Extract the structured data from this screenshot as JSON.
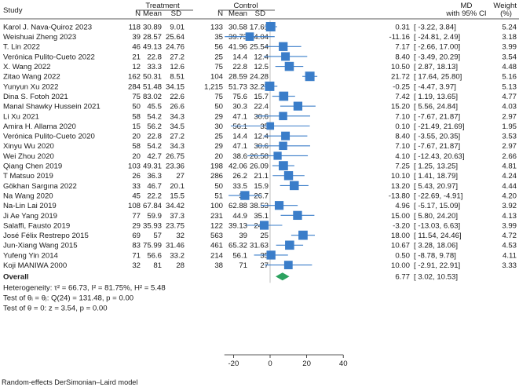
{
  "chart_data": {
    "type": "forest",
    "headers": {
      "study": "Study",
      "treatment_group": "Treatment",
      "control_group": "Control",
      "n": "N",
      "mean": "Mean",
      "sd": "SD",
      "effect_line1": "MD",
      "effect_line2": "with 95% CI",
      "weight_line1": "Weight",
      "weight_line2": "(%)"
    },
    "studies": [
      {
        "study": "Karol J. Nava-Quiroz 2023",
        "t_n": "118",
        "t_mean": "30.89",
        "t_sd": "9.01",
        "c_n": "133",
        "c_mean": "30.58",
        "c_sd": "17.61",
        "md": 0.31,
        "lo": -3.22,
        "hi": 3.84,
        "md_text": "0.31",
        "ci_text": "[ -3.22,  3.84]",
        "weight": "5.24"
      },
      {
        "study": "Weishuai Zheng 2023",
        "t_n": "39",
        "t_mean": "28.57",
        "t_sd": "25.64",
        "c_n": "35",
        "c_mean": "39.73",
        "c_sd": "34.04",
        "md": -11.16,
        "lo": -24.81,
        "hi": 2.49,
        "md_text": "-11.16",
        "ci_text": "[ -24.81,  2.49]",
        "weight": "3.18"
      },
      {
        "study": "T. Lin 2022",
        "t_n": "46",
        "t_mean": "49.13",
        "t_sd": "24.76",
        "c_n": "56",
        "c_mean": "41.96",
        "c_sd": "25.54",
        "md": 7.17,
        "lo": -2.66,
        "hi": 17.0,
        "md_text": "7.17",
        "ci_text": "[ -2.66, 17.00]",
        "weight": "3.99"
      },
      {
        "study": "Verónica Pulito-Cueto 2022",
        "t_n": "21",
        "t_mean": "22.8",
        "t_sd": "27.2",
        "c_n": "25",
        "c_mean": "14.4",
        "c_sd": "12.4",
        "md": 8.4,
        "lo": -3.49,
        "hi": 20.29,
        "md_text": "8.40",
        "ci_text": "[ -3.49, 20.29]",
        "weight": "3.54"
      },
      {
        "study": "X. Wang 2022",
        "t_n": "12",
        "t_mean": "33.3",
        "t_sd": "12.6",
        "c_n": "75",
        "c_mean": "22.8",
        "c_sd": "12.5",
        "md": 10.5,
        "lo": 2.87,
        "hi": 18.13,
        "md_text": "10.50",
        "ci_text": "[  2.87, 18.13]",
        "weight": "4.48"
      },
      {
        "study": "Zitao Wang 2022",
        "t_n": "162",
        "t_mean": "50.31",
        "t_sd": "8.51",
        "c_n": "104",
        "c_mean": "28.59",
        "c_sd": "24.28",
        "md": 21.72,
        "lo": 17.64,
        "hi": 25.8,
        "md_text": "21.72",
        "ci_text": "[ 17.64, 25.80]",
        "weight": "5.16"
      },
      {
        "study": "Yunyun Xu 2022",
        "t_n": "284",
        "t_mean": "51.48",
        "t_sd": "34.15",
        "c_n": "1,215",
        "c_mean": "51.73",
        "c_sd": "32.27",
        "md": -0.25,
        "lo": -4.47,
        "hi": 3.97,
        "md_text": "-0.25",
        "ci_text": "[ -4.47,  3.97]",
        "weight": "5.13"
      },
      {
        "study": "Dina S. Fotoh 2021",
        "t_n": "75",
        "t_mean": "83.02",
        "t_sd": "22.6",
        "c_n": "75",
        "c_mean": "75.6",
        "c_sd": "15.7",
        "md": 7.42,
        "lo": 1.19,
        "hi": 13.65,
        "md_text": "7.42",
        "ci_text": "[  1.19, 13.65]",
        "weight": "4.77"
      },
      {
        "study": "Manal Shawky Hussein 2021",
        "t_n": "50",
        "t_mean": "45.5",
        "t_sd": "26.6",
        "c_n": "50",
        "c_mean": "30.3",
        "c_sd": "22.4",
        "md": 15.2,
        "lo": 5.56,
        "hi": 24.84,
        "md_text": "15.20",
        "ci_text": "[  5.56, 24.84]",
        "weight": "4.03"
      },
      {
        "study": "Li Xu 2021",
        "t_n": "58",
        "t_mean": "54.2",
        "t_sd": "34.3",
        "c_n": "29",
        "c_mean": "47.1",
        "c_sd": "30.6",
        "md": 7.1,
        "lo": -7.67,
        "hi": 21.87,
        "md_text": "7.10",
        "ci_text": "[ -7.67, 21.87]",
        "weight": "2.97"
      },
      {
        "study": "Amira H. Allama 2020",
        "t_n": "15",
        "t_mean": "56.2",
        "t_sd": "34.5",
        "c_n": "30",
        "c_mean": "56.1",
        "c_sd": "35",
        "md": 0.1,
        "lo": -21.49,
        "hi": 21.69,
        "md_text": "0.10",
        "ci_text": "[ -21.49, 21.69]",
        "weight": "1.95"
      },
      {
        "study": "Verónica Pulito-Cueto 2020",
        "t_n": "20",
        "t_mean": "22.8",
        "t_sd": "27.2",
        "c_n": "25",
        "c_mean": "14.4",
        "c_sd": "12.4",
        "md": 8.4,
        "lo": -3.55,
        "hi": 20.35,
        "md_text": "8.40",
        "ci_text": "[ -3.55, 20.35]",
        "weight": "3.53"
      },
      {
        "study": "Xinyu Wu 2020",
        "t_n": "58",
        "t_mean": "54.2",
        "t_sd": "34.3",
        "c_n": "29",
        "c_mean": "47.1",
        "c_sd": "30.6",
        "md": 7.1,
        "lo": -7.67,
        "hi": 21.87,
        "md_text": "7.10",
        "ci_text": "[ -7.67, 21.87]",
        "weight": "2.97"
      },
      {
        "study": "Wei Zhou 2020",
        "t_n": "20",
        "t_mean": "42.7",
        "t_sd": "26.75",
        "c_n": "20",
        "c_mean": "38.6",
        "c_sd": "26.58",
        "md": 4.1,
        "lo": -12.43,
        "hi": 20.63,
        "md_text": "4.10",
        "ci_text": "[ -12.43, 20.63]",
        "weight": "2.66"
      },
      {
        "study": "Qiang Chen 2019",
        "t_n": "103",
        "t_mean": "49.31",
        "t_sd": "23.36",
        "c_n": "198",
        "c_mean": "42.06",
        "c_sd": "26.09",
        "md": 7.25,
        "lo": 1.25,
        "hi": 13.25,
        "md_text": "7.25",
        "ci_text": "[  1.25, 13.25]",
        "weight": "4.81"
      },
      {
        "study": "T Matsuo 2019",
        "t_n": "26",
        "t_mean": "36.3",
        "t_sd": "27",
        "c_n": "286",
        "c_mean": "26.2",
        "c_sd": "21.1",
        "md": 10.1,
        "lo": 1.41,
        "hi": 18.79,
        "md_text": "10.10",
        "ci_text": "[  1.41, 18.79]",
        "weight": "4.24"
      },
      {
        "study": "Gökhan Sargına 2022",
        "t_n": "33",
        "t_mean": "46.7",
        "t_sd": "20.1",
        "c_n": "50",
        "c_mean": "33.5",
        "c_sd": "15.9",
        "md": 13.2,
        "lo": 5.43,
        "hi": 20.97,
        "md_text": "13.20",
        "ci_text": "[  5.43, 20.97]",
        "weight": "4.44"
      },
      {
        "study": "Na Wang 2020",
        "t_n": "45",
        "t_mean": "22.2",
        "t_sd": "15.5",
        "c_n": "51",
        "c_mean": "36",
        "c_sd": "26.7",
        "md": -13.8,
        "lo": -22.69,
        "hi": -4.91,
        "md_text": "-13.80",
        "ci_text": "[ -22.69, -4.91]",
        "weight": "4.20"
      },
      {
        "study": "Na-Lin Lai 2019",
        "t_n": "108",
        "t_mean": "67.84",
        "t_sd": "34.42",
        "c_n": "100",
        "c_mean": "62.88",
        "c_sd": "38.53",
        "md": 4.96,
        "lo": -5.17,
        "hi": 15.09,
        "md_text": "4.96",
        "ci_text": "[ -5.17, 15.09]",
        "weight": "3.92"
      },
      {
        "study": "Ji Ae Yang 2019",
        "t_n": "77",
        "t_mean": "59.9",
        "t_sd": "37.3",
        "c_n": "231",
        "c_mean": "44.9",
        "c_sd": "35.1",
        "md": 15.0,
        "lo": 5.8,
        "hi": 24.2,
        "md_text": "15.00",
        "ci_text": "[  5.80, 24.20]",
        "weight": "4.13"
      },
      {
        "study": "Salaffi, Fausto 2019",
        "t_n": "29",
        "t_mean": "35.93",
        "t_sd": "23.75",
        "c_n": "122",
        "c_mean": "39.13",
        "c_sd": "24.4",
        "md": -3.2,
        "lo": -13.03,
        "hi": 6.63,
        "md_text": "-3.20",
        "ci_text": "[ -13.03,  6.63]",
        "weight": "3.99"
      },
      {
        "study": "José Félix Restrepo 2015",
        "t_n": "69",
        "t_mean": "57",
        "t_sd": "32",
        "c_n": "563",
        "c_mean": "39",
        "c_sd": "25",
        "md": 18.0,
        "lo": 11.54,
        "hi": 24.46,
        "md_text": "18.00",
        "ci_text": "[ 11.54, 24.46]",
        "weight": "4.72"
      },
      {
        "study": "Jun-Xiang Wang 2015",
        "t_n": "83",
        "t_mean": "75.99",
        "t_sd": "31.46",
        "c_n": "461",
        "c_mean": "65.32",
        "c_sd": "31.63",
        "md": 10.67,
        "lo": 3.28,
        "hi": 18.06,
        "md_text": "10.67",
        "ci_text": "[  3.28, 18.06]",
        "weight": "4.53"
      },
      {
        "study": "Yufeng Yin 2014",
        "t_n": "71",
        "t_mean": "56.6",
        "t_sd": "33.2",
        "c_n": "214",
        "c_mean": "56.1",
        "c_sd": "35",
        "md": 0.5,
        "lo": -8.78,
        "hi": 9.78,
        "md_text": "0.50",
        "ci_text": "[ -8.78,  9.78]",
        "weight": "4.11"
      },
      {
        "study": "Koji MANIWA 2000",
        "t_n": "32",
        "t_mean": "81",
        "t_sd": "28",
        "c_n": "38",
        "c_mean": "71",
        "c_sd": "27",
        "md": 10.0,
        "lo": -2.91,
        "hi": 22.91,
        "md_text": "10.00",
        "ci_text": "[ -2.91, 22.91]",
        "weight": "3.33"
      }
    ],
    "overall": {
      "label": "Overall",
      "md": 6.77,
      "lo": 3.02,
      "hi": 10.53,
      "md_text": "6.77",
      "ci_text": "[  3.02, 10.53]"
    },
    "stats": [
      "Heterogeneity: τ² = 66.73, I² = 81.75%, H² = 5.48",
      "Test of θᵢ = θⱼ: Q(24) = 131.48, p = 0.00",
      "Test of θ = 0: z = 3.54, p = 0.00"
    ],
    "x_axis": {
      "ticks": [
        -20,
        0,
        20,
        40
      ],
      "tick_labels": [
        "-20",
        "0",
        "20",
        "40"
      ],
      "xlim": [
        -30,
        45
      ]
    },
    "colors": {
      "marker": "#3a7dc9",
      "ci_line": "#3a7dc9",
      "overall": "#2ca25f",
      "ref_line": "#b0b0b0",
      "rule": "#222222"
    }
  },
  "footnote": "Random-effects DerSimonian–Laird model"
}
